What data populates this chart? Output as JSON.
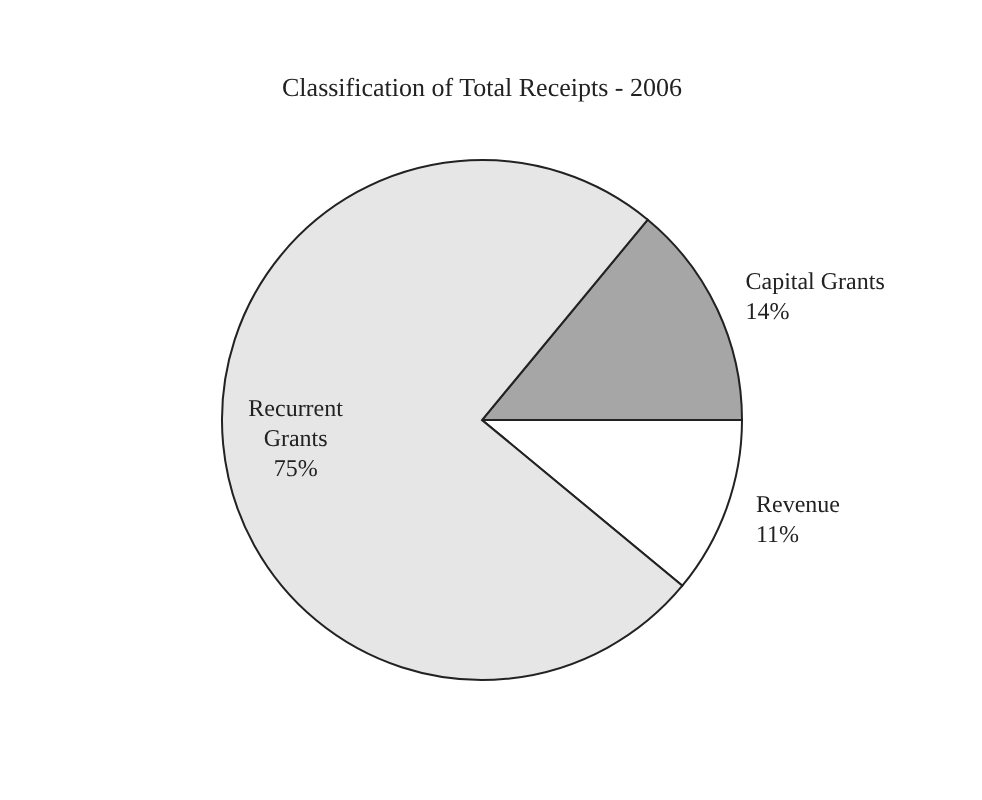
{
  "chart_data": {
    "type": "pie",
    "title": "Classification of Total Receipts - 2006",
    "categories": [
      "Capital Grants",
      "Revenue",
      "Recurrent Grants"
    ],
    "values": [
      14,
      11,
      75
    ],
    "colors": [
      "#a6a6a6",
      "#ffffff",
      "#e6e6e6"
    ],
    "value_labels": [
      "14%",
      "11%",
      "75%"
    ]
  }
}
